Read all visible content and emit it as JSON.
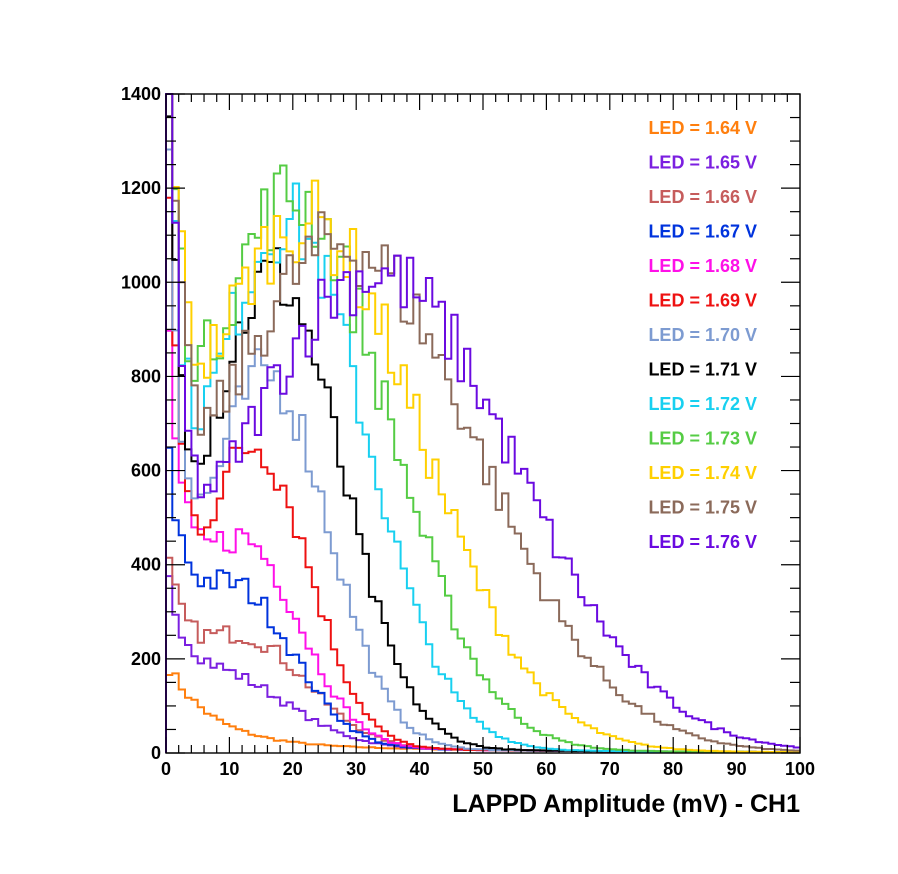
{
  "chart_data": {
    "type": "line",
    "style": "step-histogram",
    "title": "",
    "xlabel": "LAPPD Amplitude (mV) - CH1",
    "ylabel": "",
    "xlim": [
      0,
      100
    ],
    "ylim": [
      0,
      1400
    ],
    "x_ticks": [
      0,
      10,
      20,
      30,
      40,
      50,
      60,
      70,
      80,
      90,
      100
    ],
    "y_ticks": [
      0,
      200,
      400,
      600,
      800,
      1000,
      1200,
      1400
    ],
    "bin_width": 1,
    "legend_position": "top-right",
    "series": [
      {
        "name": "LED = 1.64 V",
        "color": "#ff7f0e",
        "peak_x": 3,
        "peak": 0,
        "sigma": 12,
        "noise_amp": 170,
        "noise_decay": 7,
        "tail": 0
      },
      {
        "name": "LED = 1.65 V",
        "color": "#7b1fe0",
        "peak_x": 8,
        "peak": 150,
        "sigma": 11,
        "noise_amp": 260,
        "noise_decay": 3,
        "tail": 0
      },
      {
        "name": "LED = 1.66 V",
        "color": "#c65c5c",
        "peak_x": 12,
        "peak": 230,
        "sigma": 10,
        "noise_amp": 300,
        "noise_decay": 3,
        "tail": 0
      },
      {
        "name": "LED = 1.67 V",
        "color": "#0033dd",
        "peak_x": 11,
        "peak": 330,
        "sigma": 9,
        "noise_amp": 500,
        "noise_decay": 3,
        "tail": 0
      },
      {
        "name": "LED = 1.68 V",
        "color": "#ff10e8",
        "peak_x": 12,
        "peak": 435,
        "sigma": 9,
        "noise_amp": 800,
        "noise_decay": 2.5,
        "tail": 0
      },
      {
        "name": "LED = 1.69 V",
        "color": "#ee1111",
        "peak_x": 14,
        "peak": 640,
        "sigma": 8.5,
        "noise_amp": 1300,
        "noise_decay": 2,
        "tail": 0
      },
      {
        "name": "LED = 1.70 V",
        "color": "#7d9bd1",
        "peak_x": 16,
        "peak": 790,
        "sigma": 9.5,
        "noise_amp": 1400,
        "noise_decay": 2,
        "tail": 0
      },
      {
        "name": "LED = 1.71 V",
        "color": "#000000",
        "peak_x": 17,
        "peak": 1000,
        "sigma": 10.5,
        "noise_amp": 1400,
        "noise_decay": 2,
        "tail": 0
      },
      {
        "name": "LED = 1.72 V",
        "color": "#18d0f0",
        "peak_x": 19,
        "peak": 1120,
        "sigma": 12.5,
        "noise_amp": 1400,
        "noise_decay": 2,
        "tail": 0
      },
      {
        "name": "LED = 1.73 V",
        "color": "#55cc44",
        "peak_x": 20,
        "peak": 1170,
        "sigma": 15,
        "noise_amp": 1400,
        "noise_decay": 2,
        "tail": 0
      },
      {
        "name": "LED = 1.74 V",
        "color": "#ffd000",
        "peak_x": 22,
        "peak": 1120,
        "sigma": 18,
        "noise_amp": 1400,
        "noise_decay": 2,
        "tail": 0
      },
      {
        "name": "LED = 1.75 V",
        "color": "#8b6a5a",
        "peak_x": 28,
        "peak": 1070,
        "sigma": 21,
        "noise_amp": 1400,
        "noise_decay": 2,
        "tail": 0
      },
      {
        "name": "LED = 1.76 V",
        "color": "#6a0ae0",
        "peak_x": 33,
        "peak": 1010,
        "sigma": 22,
        "noise_amp": 1400,
        "noise_decay": 2,
        "tail": 0
      }
    ]
  }
}
